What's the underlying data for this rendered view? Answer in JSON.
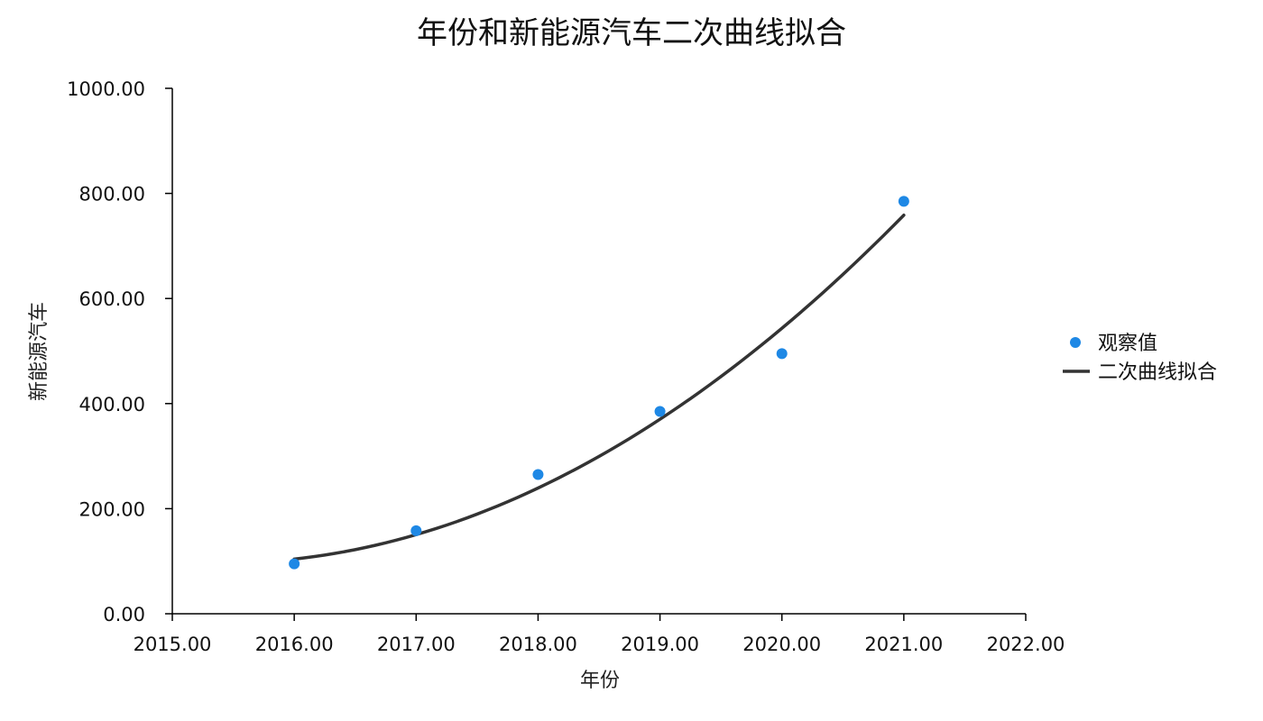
{
  "chart_data": {
    "type": "scatter",
    "title": "年份和新能源汽车二次曲线拟合",
    "xlabel": "年份",
    "ylabel": "新能源汽车",
    "xlim": [
      2015,
      2022
    ],
    "ylim": [
      0,
      1000
    ],
    "x_ticks": [
      "2015.00",
      "2016.00",
      "2017.00",
      "2018.00",
      "2019.00",
      "2020.00",
      "2021.00",
      "2022.00"
    ],
    "y_ticks": [
      "0.00",
      "200.00",
      "400.00",
      "600.00",
      "800.00",
      "1000.00"
    ],
    "grid": false,
    "legend_position": "right",
    "series": [
      {
        "name": "观察值",
        "kind": "scatter",
        "color": "#1E88E5",
        "x": [
          2016,
          2017,
          2018,
          2019,
          2020,
          2021
        ],
        "y": [
          95,
          158,
          265,
          385,
          495,
          785
        ]
      },
      {
        "name": "二次曲线拟合",
        "kind": "line",
        "color": "#333333",
        "x": [
          2016,
          2017,
          2018,
          2019,
          2020,
          2021
        ],
        "y": [
          103,
          152,
          240,
          370,
          541,
          760
        ]
      }
    ]
  }
}
